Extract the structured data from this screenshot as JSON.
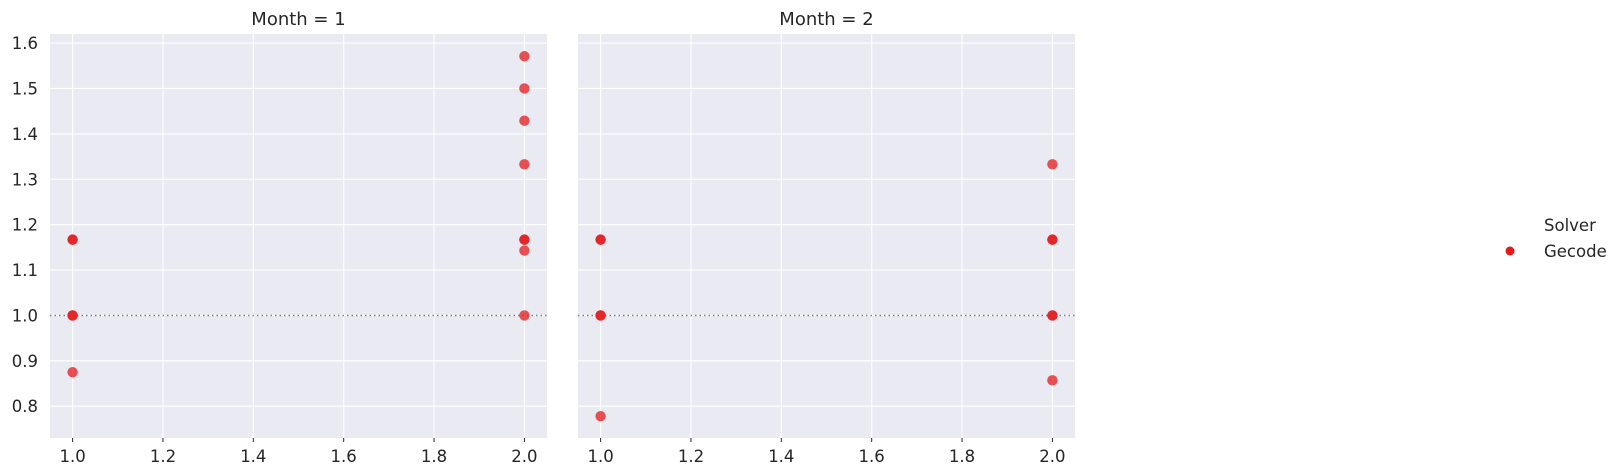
{
  "chart_data": [
    {
      "type": "scatter",
      "title": "Month = 1",
      "xlabel": "",
      "ylabel": "",
      "xlim": [
        0.95,
        2.05
      ],
      "ylim": [
        0.73,
        1.62
      ],
      "xticks": [
        1.0,
        1.2,
        1.4,
        1.6,
        1.8,
        2.0
      ],
      "xtick_labels": [
        "1.0",
        "1.2",
        "1.4",
        "1.6",
        "1.8",
        "2.0"
      ],
      "yticks": [
        0.8,
        0.9,
        1.0,
        1.1,
        1.2,
        1.3,
        1.4,
        1.5,
        1.6
      ],
      "ytick_labels": [
        "0.8",
        "0.9",
        "1.0",
        "1.1",
        "1.2",
        "1.3",
        "1.4",
        "1.5",
        "1.6"
      ],
      "show_ytick_labels": true,
      "reference_line_y": 1.0,
      "grid": true,
      "series": [
        {
          "name": "Gecode",
          "points": [
            {
              "x": 1.0,
              "y": 1.167
            },
            {
              "x": 1.0,
              "y": 1.167
            },
            {
              "x": 1.0,
              "y": 1.0
            },
            {
              "x": 1.0,
              "y": 1.0
            },
            {
              "x": 1.0,
              "y": 0.875
            },
            {
              "x": 2.0,
              "y": 1.571
            },
            {
              "x": 2.0,
              "y": 1.5
            },
            {
              "x": 2.0,
              "y": 1.429
            },
            {
              "x": 2.0,
              "y": 1.333
            },
            {
              "x": 2.0,
              "y": 1.167
            },
            {
              "x": 2.0,
              "y": 1.167
            },
            {
              "x": 2.0,
              "y": 1.143
            },
            {
              "x": 2.0,
              "y": 1.0
            }
          ]
        }
      ]
    },
    {
      "type": "scatter",
      "title": "Month = 2",
      "xlabel": "",
      "ylabel": "",
      "xlim": [
        0.95,
        2.05
      ],
      "ylim": [
        0.73,
        1.62
      ],
      "xticks": [
        1.0,
        1.2,
        1.4,
        1.6,
        1.8,
        2.0
      ],
      "xtick_labels": [
        "1.0",
        "1.2",
        "1.4",
        "1.6",
        "1.8",
        "2.0"
      ],
      "yticks": [
        0.8,
        0.9,
        1.0,
        1.1,
        1.2,
        1.3,
        1.4,
        1.5,
        1.6
      ],
      "ytick_labels": [],
      "show_ytick_labels": false,
      "reference_line_y": 1.0,
      "grid": true,
      "series": [
        {
          "name": "Gecode",
          "points": [
            {
              "x": 1.0,
              "y": 1.167
            },
            {
              "x": 1.0,
              "y": 1.167
            },
            {
              "x": 1.0,
              "y": 1.0
            },
            {
              "x": 1.0,
              "y": 1.0
            },
            {
              "x": 1.0,
              "y": 0.778
            },
            {
              "x": 2.0,
              "y": 1.333
            },
            {
              "x": 2.0,
              "y": 1.167
            },
            {
              "x": 2.0,
              "y": 1.167
            },
            {
              "x": 2.0,
              "y": 1.0
            },
            {
              "x": 2.0,
              "y": 1.0
            },
            {
              "x": 2.0,
              "y": 0.857
            }
          ]
        }
      ]
    }
  ],
  "legend": {
    "title": "Solver",
    "entries": [
      {
        "label": "Gecode",
        "color": "#e41a1c"
      }
    ],
    "placement": "right"
  },
  "colors": {
    "point": "#e41a1c",
    "panel_background": "#eaeaf2",
    "grid": "#ffffff",
    "reference_line": "#808080"
  }
}
